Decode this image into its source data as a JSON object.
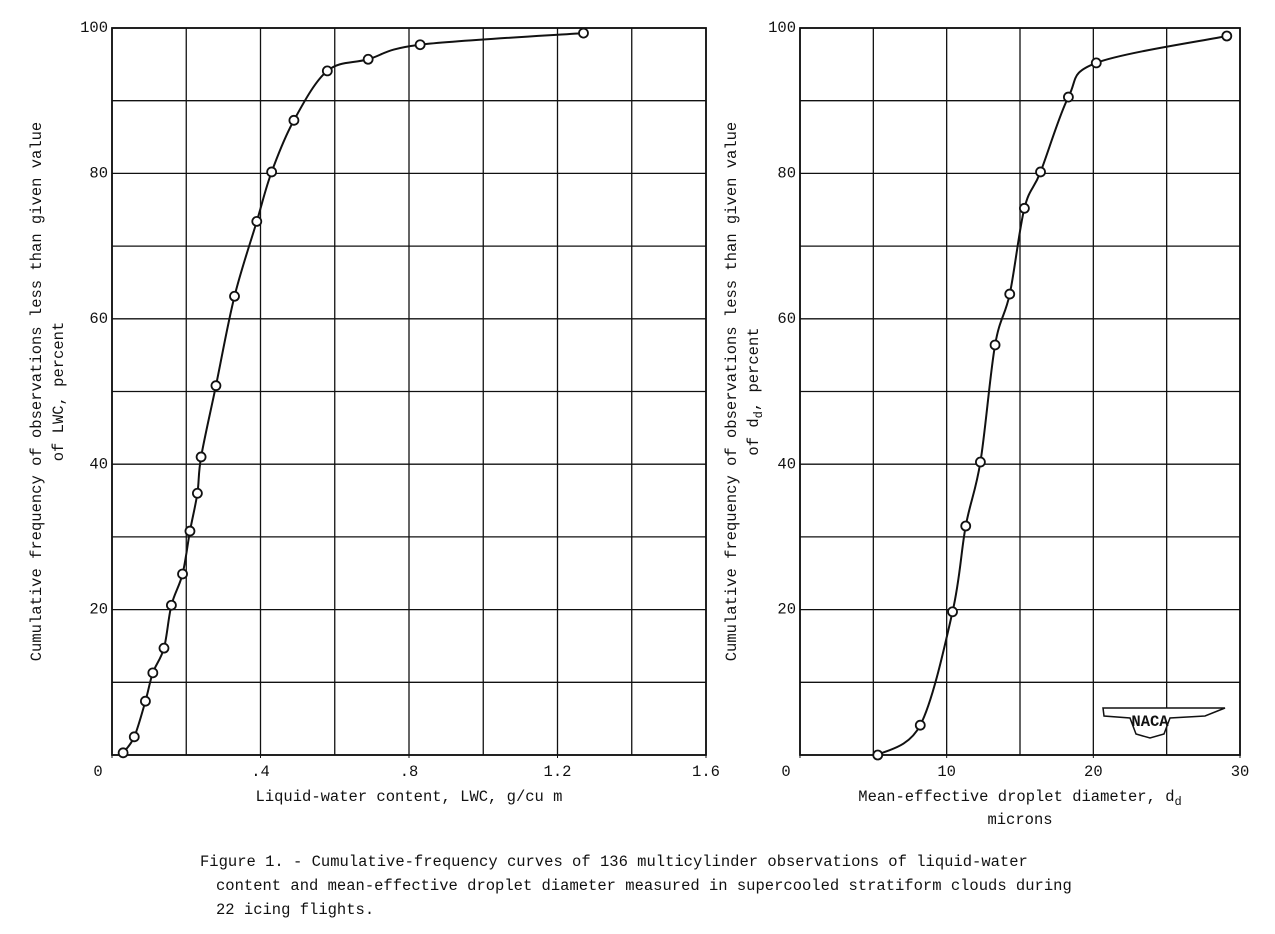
{
  "chart_data": [
    {
      "type": "line",
      "ylabel": "Cumulative frequency of observations less than given value",
      "ylabel2": "of  LWC, percent",
      "xlabel": "Liquid-water content, LWC, g/cu m",
      "x": [
        0.03,
        0.06,
        0.09,
        0.11,
        0.14,
        0.16,
        0.19,
        0.21,
        0.23,
        0.24,
        0.28,
        0.33,
        0.39,
        0.43,
        0.49,
        0.58,
        0.69,
        0.83,
        1.27
      ],
      "series": [
        {
          "color": "#111111",
          "values": [
            0.3,
            2.5,
            7.4,
            11.3,
            14.7,
            20.6,
            24.9,
            30.8,
            36.0,
            41.0,
            50.8,
            63.1,
            73.4,
            80.2,
            87.3,
            94.1,
            95.7,
            97.7,
            99.3
          ]
        }
      ],
      "xlim": [
        0,
        1.6
      ],
      "ylim": [
        0,
        100
      ],
      "xticks": [
        0,
        {
          "value": 0.4,
          "label": ".4"
        },
        {
          "value": 0.8,
          "label": ".8"
        },
        {
          "value": 1.2,
          "label": "1.2"
        },
        1.6
      ],
      "yticks": [
        20,
        40,
        60,
        80,
        100
      ],
      "xgrid": [
        0,
        0.2,
        0.4,
        0.6,
        0.8,
        1.0,
        1.2,
        1.4,
        1.6
      ],
      "ygrid": [
        0,
        10,
        20,
        30,
        40,
        50,
        60,
        70,
        80,
        90,
        100
      ]
    },
    {
      "type": "line",
      "ylabel": "Cumulative frequency of observations less than given value",
      "ylabel2": "of d",
      "ylabel2_sub": "d",
      "ylabel2_end": ", percent",
      "xlabel": "Mean-effective droplet diameter, d",
      "xlabel_sub": "d",
      "xlabel2": "microns",
      "logo": "NACA",
      "x": [
        5.3,
        8.2,
        10.4,
        11.3,
        12.3,
        13.3,
        14.3,
        15.3,
        16.4,
        18.3,
        20.2,
        29.1
      ],
      "series": [
        {
          "color": "#111111",
          "values": [
            0,
            4.1,
            19.7,
            31.5,
            40.3,
            56.4,
            63.4,
            75.2,
            80.2,
            90.5,
            95.2,
            98.9
          ]
        }
      ],
      "xlim": [
        0,
        30
      ],
      "ylim": [
        0,
        100
      ],
      "xticks": [
        0,
        10,
        20,
        30
      ],
      "yticks": [
        20,
        40,
        60,
        80,
        100
      ],
      "xgrid": [
        0,
        5,
        10,
        15,
        20,
        25,
        30
      ],
      "ygrid": [
        0,
        10,
        20,
        30,
        40,
        50,
        60,
        70,
        80,
        90,
        100
      ]
    }
  ],
  "caption": [
    "Figure 1. - Cumulative-frequency curves of 136 multicylinder observations of liquid-water",
    "content and mean-effective droplet diameter measured in supercooled stratiform clouds during",
    "22 icing flights."
  ]
}
